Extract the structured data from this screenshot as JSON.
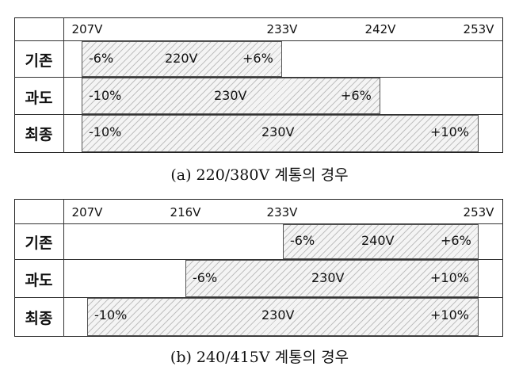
{
  "panels": [
    {
      "ticks": [
        "207V",
        "233V",
        "242V",
        "253V"
      ],
      "rows": [
        {
          "label": "기존",
          "min": "-6%",
          "center": "220V",
          "max": "+6%"
        },
        {
          "label": "과도",
          "min": "-10%",
          "center": "230V",
          "max": "+6%"
        },
        {
          "label": "최종",
          "min": "-10%",
          "center": "230V",
          "max": "+10%"
        }
      ],
      "caption": "(a)  220/380V  계통의  경우"
    },
    {
      "ticks": [
        "207V",
        "216V",
        "233V",
        "253V"
      ],
      "rows": [
        {
          "label": "기존",
          "min": "-6%",
          "center": "240V",
          "max": "+6%"
        },
        {
          "label": "과도",
          "min": "-6%",
          "center": "230V",
          "max": "+10%"
        },
        {
          "label": "최종",
          "min": "-10%",
          "center": "230V",
          "max": "+10%"
        }
      ],
      "caption": "(b)  240/415V  계통의  경우"
    }
  ]
}
